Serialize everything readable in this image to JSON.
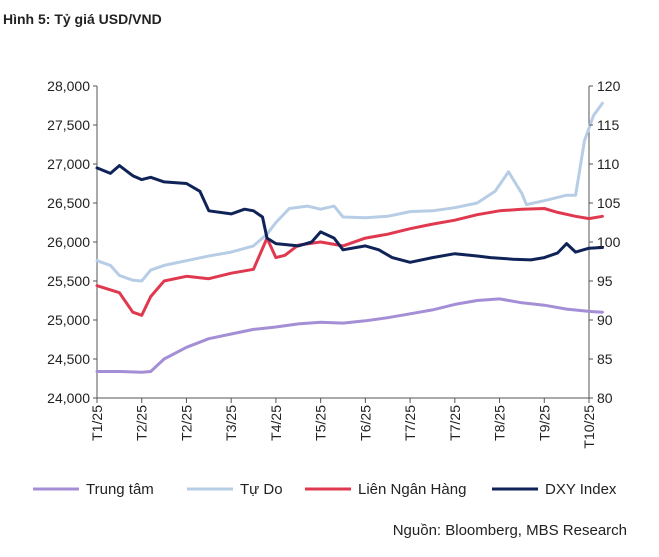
{
  "title": "Hình 5: Tỷ giá USD/VND",
  "source": "Nguồn: Bloomberg, MBS Research",
  "chart_data": {
    "type": "line",
    "grid": false,
    "legend_position": "bottom",
    "x_tick_labels": [
      "T1/25",
      "T2/25",
      "T2/25",
      "T3/25",
      "T4/25",
      "T5/25",
      "T6/25",
      "T7/25",
      "T7/25",
      "T8/25",
      "T9/25",
      "T10/25"
    ],
    "y_left": {
      "range": [
        24000,
        28000
      ],
      "ticks": [
        "24,000",
        "24,500",
        "25,000",
        "25,500",
        "26,000",
        "26,500",
        "27,000",
        "27,500",
        "28,000"
      ]
    },
    "y_right": {
      "range": [
        80,
        120
      ],
      "ticks": [
        "80",
        "85",
        "90",
        "95",
        "100",
        "105",
        "110",
        "115",
        "120"
      ]
    },
    "series": [
      {
        "name": "Trung tâm",
        "axis": "left",
        "color": "#a48fd6",
        "points": [
          [
            0,
            24340
          ],
          [
            0.5,
            24340
          ],
          [
            1,
            24330
          ],
          [
            1.2,
            24340
          ],
          [
            1.5,
            24500
          ],
          [
            2,
            24650
          ],
          [
            2.5,
            24760
          ],
          [
            3,
            24820
          ],
          [
            3.5,
            24880
          ],
          [
            4,
            24910
          ],
          [
            4.5,
            24950
          ],
          [
            5,
            24970
          ],
          [
            5.5,
            24960
          ],
          [
            6,
            24990
          ],
          [
            6.5,
            25030
          ],
          [
            7,
            25080
          ],
          [
            7.5,
            25130
          ],
          [
            8,
            25200
          ],
          [
            8.5,
            25250
          ],
          [
            9,
            25270
          ],
          [
            9.5,
            25220
          ],
          [
            10,
            25190
          ],
          [
            10.5,
            25140
          ],
          [
            11,
            25110
          ],
          [
            11.3,
            25100
          ]
        ]
      },
      {
        "name": "Tự Do",
        "axis": "left",
        "color": "#b7cde6",
        "points": [
          [
            0,
            25760
          ],
          [
            0.3,
            25700
          ],
          [
            0.5,
            25570
          ],
          [
            0.8,
            25510
          ],
          [
            1,
            25500
          ],
          [
            1.2,
            25640
          ],
          [
            1.5,
            25700
          ],
          [
            2,
            25760
          ],
          [
            2.5,
            25820
          ],
          [
            3,
            25870
          ],
          [
            3.5,
            25950
          ],
          [
            3.8,
            26100
          ],
          [
            4,
            26250
          ],
          [
            4.3,
            26430
          ],
          [
            4.7,
            26460
          ],
          [
            5,
            26420
          ],
          [
            5.3,
            26460
          ],
          [
            5.5,
            26320
          ],
          [
            6,
            26310
          ],
          [
            6.5,
            26330
          ],
          [
            7,
            26390
          ],
          [
            7.5,
            26400
          ],
          [
            8,
            26440
          ],
          [
            8.5,
            26500
          ],
          [
            8.9,
            26650
          ],
          [
            9.2,
            26900
          ],
          [
            9.5,
            26620
          ],
          [
            9.6,
            26480
          ],
          [
            10,
            26530
          ],
          [
            10.5,
            26600
          ],
          [
            10.7,
            26600
          ],
          [
            10.9,
            27300
          ],
          [
            11.1,
            27620
          ],
          [
            11.3,
            27780
          ]
        ]
      },
      {
        "name": "Liên Ngân Hàng",
        "axis": "left",
        "color": "#e0394f",
        "points": [
          [
            0,
            25440
          ],
          [
            0.5,
            25350
          ],
          [
            0.8,
            25100
          ],
          [
            1,
            25060
          ],
          [
            1.2,
            25300
          ],
          [
            1.5,
            25500
          ],
          [
            2,
            25560
          ],
          [
            2.5,
            25530
          ],
          [
            3,
            25600
          ],
          [
            3.5,
            25650
          ],
          [
            3.8,
            26050
          ],
          [
            4,
            25800
          ],
          [
            4.2,
            25830
          ],
          [
            4.5,
            25960
          ],
          [
            5,
            26000
          ],
          [
            5.5,
            25950
          ],
          [
            6,
            26050
          ],
          [
            6.5,
            26100
          ],
          [
            7,
            26170
          ],
          [
            7.5,
            26230
          ],
          [
            8,
            26280
          ],
          [
            8.5,
            26350
          ],
          [
            9,
            26400
          ],
          [
            9.5,
            26420
          ],
          [
            10,
            26430
          ],
          [
            10.3,
            26380
          ],
          [
            10.7,
            26330
          ],
          [
            11,
            26300
          ],
          [
            11.3,
            26330
          ]
        ]
      },
      {
        "name": "DXY Index",
        "axis": "right",
        "color": "#0f2358",
        "points": [
          [
            0,
            109.5
          ],
          [
            0.3,
            108.8
          ],
          [
            0.5,
            109.8
          ],
          [
            0.8,
            108.5
          ],
          [
            1,
            108.0
          ],
          [
            1.2,
            108.3
          ],
          [
            1.5,
            107.7
          ],
          [
            2,
            107.5
          ],
          [
            2.3,
            106.5
          ],
          [
            2.5,
            104.0
          ],
          [
            3,
            103.6
          ],
          [
            3.3,
            104.2
          ],
          [
            3.5,
            104.0
          ],
          [
            3.7,
            103.2
          ],
          [
            3.8,
            100.5
          ],
          [
            4,
            99.8
          ],
          [
            4.5,
            99.5
          ],
          [
            4.8,
            100.0
          ],
          [
            5,
            101.3
          ],
          [
            5.3,
            100.5
          ],
          [
            5.5,
            99.0
          ],
          [
            6,
            99.5
          ],
          [
            6.3,
            99.0
          ],
          [
            6.6,
            98.0
          ],
          [
            7,
            97.4
          ],
          [
            7.5,
            98.0
          ],
          [
            8,
            98.5
          ],
          [
            8.5,
            98.2
          ],
          [
            8.8,
            98.0
          ],
          [
            9.3,
            97.8
          ],
          [
            9.7,
            97.7
          ],
          [
            10,
            98.0
          ],
          [
            10.3,
            98.6
          ],
          [
            10.5,
            99.8
          ],
          [
            10.7,
            98.7
          ],
          [
            11,
            99.2
          ],
          [
            11.3,
            99.3
          ]
        ]
      }
    ]
  }
}
